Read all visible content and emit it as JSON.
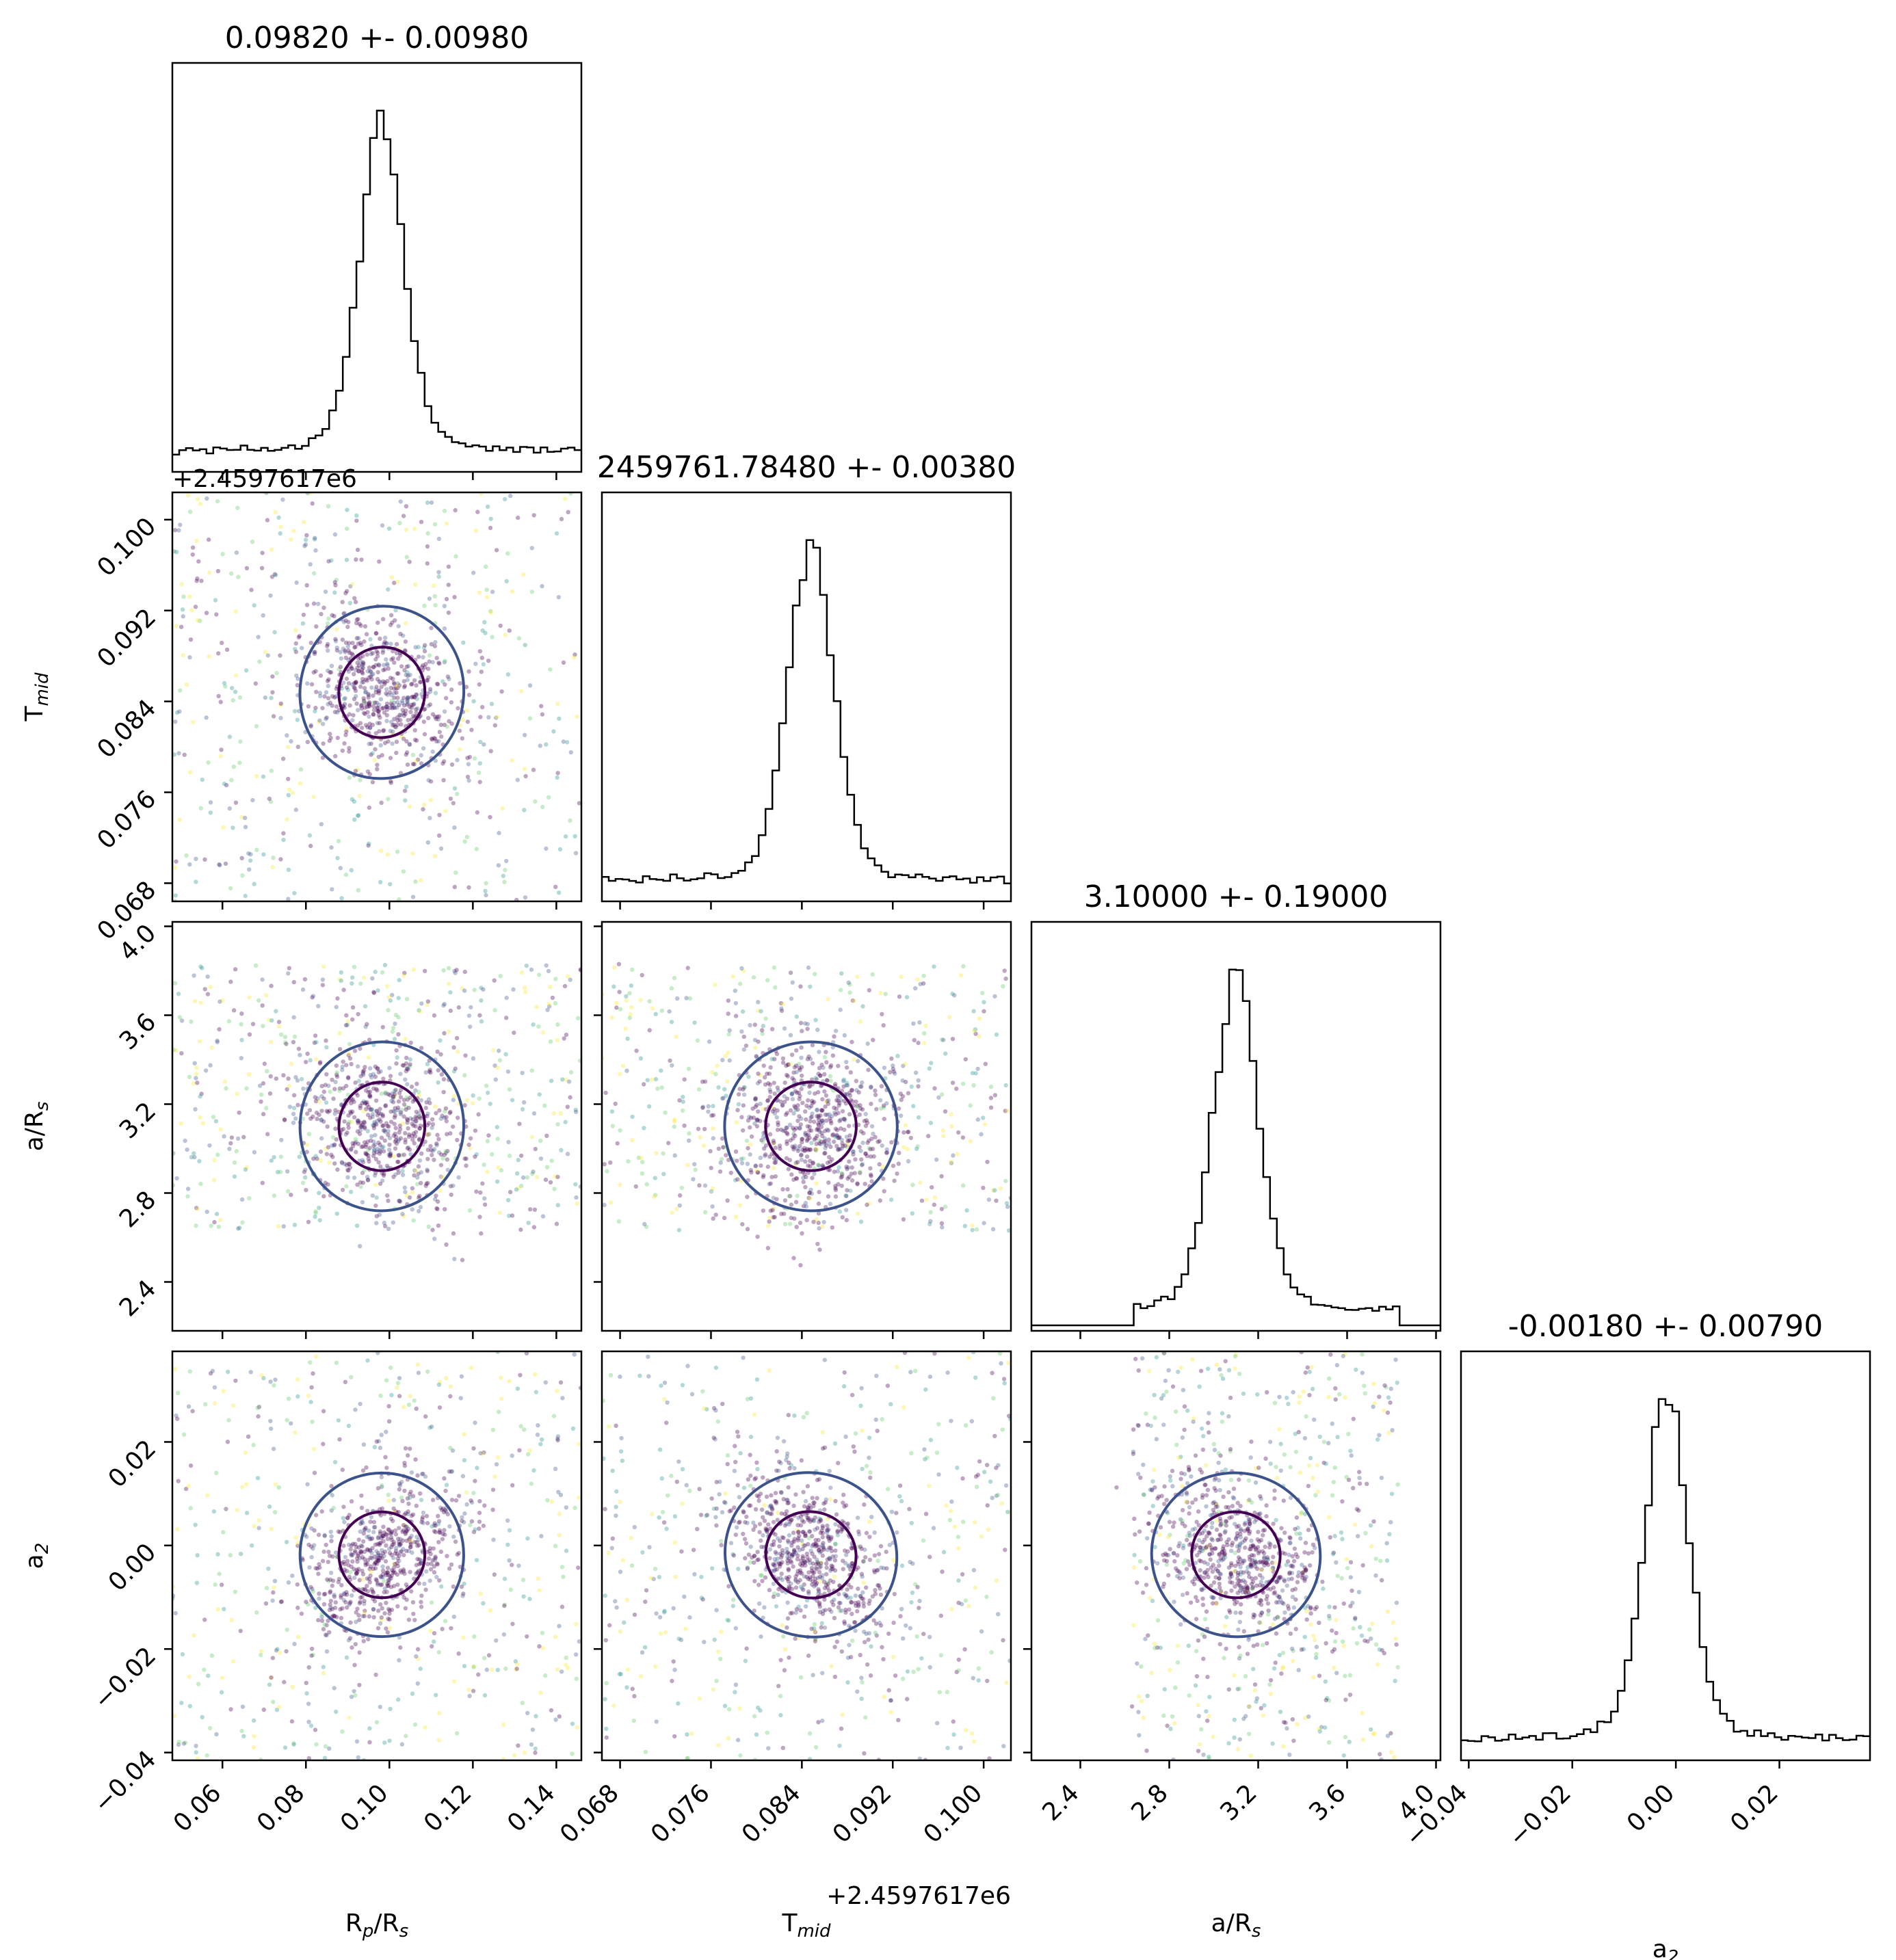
{
  "chart_data": {
    "type": "corner",
    "parameters": [
      {
        "key": "rprs",
        "title": "0.09820 +- 0.00980",
        "xlabel": "R",
        "xlabel_sub": "p",
        "xlabel_mid": "/R",
        "xlabel_sub2": "s",
        "range": [
          0.048,
          0.146
        ],
        "ticks": [
          0.06,
          0.08,
          0.1,
          0.12,
          0.14
        ],
        "tick_labels": [
          "0.06",
          "0.08",
          "0.10",
          "0.12",
          "0.14"
        ],
        "center": 0.0982,
        "sigma": 0.0098
      },
      {
        "key": "tmid",
        "title": "2459761.78480 +- 0.00380",
        "xlabel": "T",
        "xlabel_sub": "mid",
        "offset": "+2.4597617e6",
        "range": [
          0.0664,
          0.1024
        ],
        "ticks": [
          0.068,
          0.076,
          0.084,
          0.092,
          0.1
        ],
        "tick_labels": [
          "0.068",
          "0.076",
          "0.084",
          "0.092",
          "0.100"
        ],
        "center": 0.0848,
        "sigma": 0.0038
      },
      {
        "key": "ars",
        "title": "3.10000 +- 0.19000",
        "xlabel": "a/R",
        "xlabel_sub": "s",
        "range": [
          2.18,
          4.02
        ],
        "ticks": [
          2.4,
          2.8,
          3.2,
          3.6,
          4.0
        ],
        "tick_labels": [
          "2.4",
          "2.8",
          "3.2",
          "3.6",
          "4.0"
        ],
        "center": 3.1,
        "sigma": 0.19,
        "hist_support": [
          2.63,
          3.83
        ]
      },
      {
        "key": "a2",
        "title": "-0.00180 +- 0.00790",
        "xlabel": "a",
        "xlabel_sub": "2",
        "range": [
          -0.0415,
          0.0375
        ],
        "ticks": [
          -0.04,
          -0.02,
          0.0,
          0.02
        ],
        "tick_labels": [
          "−0.04",
          "−0.02",
          "0.00",
          "0.02"
        ],
        "center": -0.0018,
        "sigma": 0.0079
      }
    ],
    "y_labels": {
      "tmid": {
        "text": "T",
        "sub": "mid",
        "offset": "+2.4597617e6"
      },
      "ars": {
        "text": "a/R",
        "sub": "s"
      },
      "a2": {
        "text": "a",
        "sub": "2"
      }
    },
    "colors": {
      "hist": "#000000",
      "contour_inner": "#440154",
      "contour_outer": "#3b528b",
      "contour_far": "#fde725",
      "scatter_palette": [
        "#440154",
        "#3b528b",
        "#21918c",
        "#5ec962",
        "#fde725"
      ]
    },
    "grid": false,
    "legend": "none"
  }
}
